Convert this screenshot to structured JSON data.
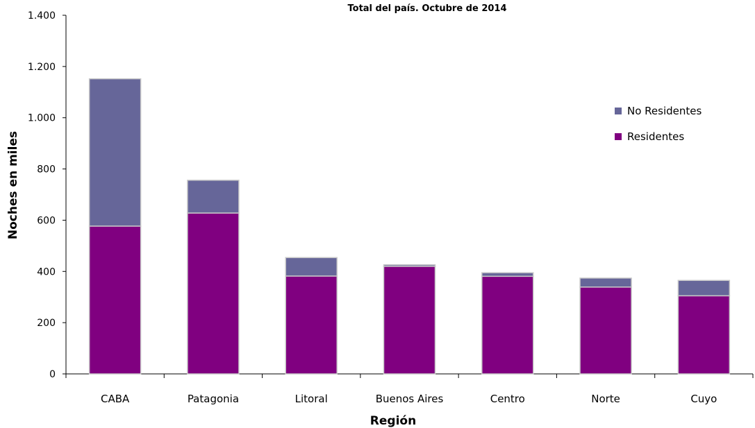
{
  "chart_data": {
    "type": "bar",
    "stacked": true,
    "title": "Total del país. Octubre de 2014",
    "xlabel": "Región",
    "ylabel": "Noches en miles",
    "ylim": [
      0,
      1400
    ],
    "yticks": [
      0,
      200,
      400,
      600,
      800,
      1000,
      1200,
      1400
    ],
    "ytick_labels": [
      "0",
      "200",
      "400",
      "600",
      "800",
      "1.000",
      "1.200",
      "1.400"
    ],
    "categories": [
      "CABA",
      "Patagonia",
      "Litoral",
      "Buenos Aires",
      "Centro",
      "Norte",
      "Cuyo"
    ],
    "series": [
      {
        "name": "Residentes",
        "color": "#800080",
        "values": [
          577,
          628,
          382,
          420,
          381,
          339,
          305
        ]
      },
      {
        "name": "No Residentes",
        "color": "#666699",
        "values": [
          575,
          128,
          72,
          6,
          14,
          35,
          60
        ]
      }
    ],
    "legend": {
      "position": "top-right",
      "order": [
        "No Residentes",
        "Residentes"
      ]
    },
    "grid": false
  }
}
